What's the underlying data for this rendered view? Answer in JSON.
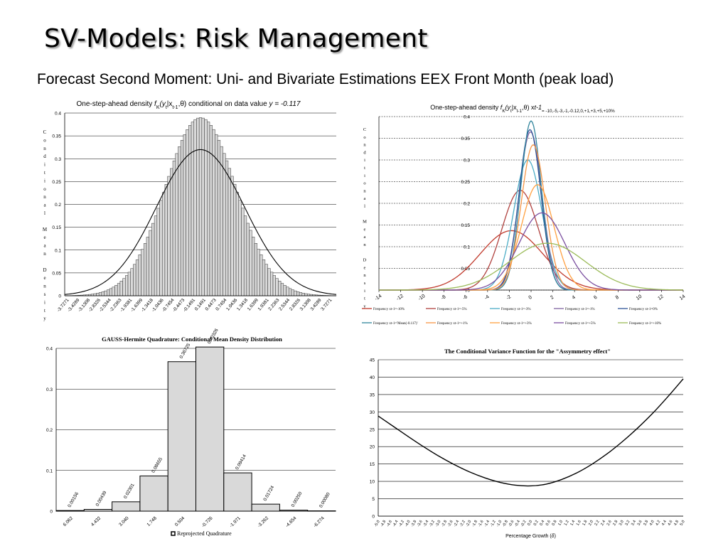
{
  "slide": {
    "title": "SV-Models: Risk Management",
    "subtitle": "Forecast Second Moment: Uni- and Bivariate Estimations EEX Front Month (peak load)"
  },
  "chart_data": [
    {
      "id": "density1",
      "type": "bar",
      "title_parts": [
        "One-step-ahead density ",
        "f",
        "K",
        "(y",
        "t",
        "|x",
        "t-1",
        ",θ) conditional on data value ",
        "y = -0.117"
      ],
      "ylabel": "Conditional Mean Density",
      "ylim": [
        0,
        0.4
      ],
      "yticks": [
        "0",
        "0.05",
        "0.1",
        "0.15",
        "0.2",
        "0.25",
        "0.3",
        "0.35",
        "0.4"
      ],
      "xticks": [
        "-3.7271",
        "-3.4289",
        "-3.1308",
        "-2.8326",
        "-2.5344",
        "-2.2363",
        "-1.9381",
        "-1.6399",
        "-1.3418",
        "-1.0436",
        "-0.7454",
        "-0.4473",
        "-0.1491",
        "0.1491",
        "0.4473",
        "0.7454",
        "1.0436",
        "1.3418",
        "1.6399",
        "1.9381",
        "2.2363",
        "2.5344",
        "2.8326",
        "3.1308",
        "3.4289",
        "3.7271"
      ],
      "x_range": [
        -3.85,
        3.85
      ],
      "bars": {
        "start": -3.8,
        "step": 0.0745,
        "count": 103,
        "peak": 0.39,
        "sigma": 1.0
      },
      "curve": {
        "peak": 0.32,
        "sigma": 1.25
      }
    },
    {
      "id": "density2",
      "type": "line",
      "title_parts": [
        "One-step-ahead density ",
        "f",
        "K",
        "(y",
        "t",
        "|x",
        "t-1",
        ",θ) x",
        "t-1",
        "= -10,-5,-3,-1,-0.12,0,+1,+3,+5,+10%"
      ],
      "ylabel": "Conditional Mean Density",
      "xlim": [
        -14,
        14
      ],
      "ylim": [
        0,
        0.4
      ],
      "xticks": [
        "-14",
        "-12",
        "-10",
        "-8",
        "-6",
        "-4",
        "-2",
        "0",
        "2",
        "4",
        "6",
        "8",
        "10",
        "12",
        "14"
      ],
      "yticks": [
        "0",
        "0.05",
        "0.1",
        "0.15",
        "0.2",
        "0.25",
        "0.3",
        "0.35",
        "0.4"
      ],
      "series": [
        {
          "name": "Frequency xt-1=-10%",
          "color": "#c0392b",
          "mu": -1.8,
          "sigma": 2.9,
          "peak": 0.137
        },
        {
          "name": "Frequency xt-1=-5%",
          "color": "#b0413e",
          "mu": -1.0,
          "sigma": 1.7,
          "peak": 0.23
        },
        {
          "name": "Frequency xt-1=-3%",
          "color": "#4bacc6",
          "mu": -0.3,
          "sigma": 1.3,
          "peak": 0.3
        },
        {
          "name": "Frequency xt-1=-1%",
          "color": "#8064a2",
          "mu": -0.05,
          "sigma": 1.05,
          "peak": 0.365
        },
        {
          "name": "Frequency xt-1=0%",
          "color": "#2f5597",
          "mu": -0.1,
          "sigma": 1.0,
          "peak": 0.37
        },
        {
          "name": "Frequency xt-1='Mean(-0.117)'",
          "color": "#31859c",
          "mu": 0.0,
          "sigma": 0.95,
          "peak": 0.39
        },
        {
          "name": "Frequency xt-1=+1%",
          "color": "#f79646",
          "mu": 0.2,
          "sigma": 1.1,
          "peak": 0.335
        },
        {
          "name": "Frequency xt-1=+3%",
          "color": "#ffa040",
          "mu": 0.6,
          "sigma": 1.5,
          "peak": 0.243
        },
        {
          "name": "Frequency xt-1=+5%",
          "color": "#7b4fa0",
          "mu": 1.0,
          "sigma": 2.1,
          "peak": 0.178
        },
        {
          "name": "Frequency xt-1=+10%",
          "color": "#9bbb59",
          "mu": 1.5,
          "sigma": 3.5,
          "peak": 0.108
        }
      ]
    },
    {
      "id": "quadrature",
      "type": "bar",
      "title": "GAUSS-Hermite Quadrature: Conditional Mean Density Distribution",
      "ylim": [
        0,
        0.4
      ],
      "yticks": [
        "0",
        "0.1",
        "0.2",
        "0.3",
        "0.4"
      ],
      "categories": [
        "6.062",
        "4.432",
        "3.040",
        "1.748",
        "0.504",
        "-0.726",
        "-1.971",
        "-3.262",
        "-4.654",
        "-6.274"
      ],
      "values": [
        0.00156,
        0.00439,
        0.02301,
        0.08655,
        0.36725,
        0.40326,
        0.09414,
        0.01724,
        0.0025,
        0.0008
      ],
      "data_labels": [
        "0.00156",
        "0.00439",
        "0.02301",
        "0.08655",
        "0.36725",
        "0.40326",
        "0.09414",
        "0.01724",
        "0.00250",
        "0.00080"
      ],
      "legend": "Reprojected Quadrature",
      "legend_position": "bottom"
    },
    {
      "id": "variance",
      "type": "line",
      "title": "The Conditional Variance Function for the \"Assymmetry effect\"",
      "xlabel": "Percentage Growth (",
      "xlabel_symbol": "δ",
      "xlabel_tail": ")",
      "xlim": [
        -5,
        5
      ],
      "ylim": [
        0,
        45
      ],
      "yticks": [
        "0",
        "5",
        "10",
        "15",
        "20",
        "25",
        "30",
        "35",
        "40",
        "45"
      ],
      "xticks": [
        "-5.0",
        "-4.8",
        "-4.6",
        "-4.4",
        "-4.2",
        "-4.0",
        "-3.8",
        "-3.6",
        "-3.4",
        "-3.2",
        "-3.0",
        "-2.8",
        "-2.6",
        "-2.4",
        "-2.2",
        "-2.0",
        "-1.8",
        "-1.6",
        "-1.4",
        "-1.2",
        "-1.0",
        "-0.8",
        "-0.6",
        "-0.4",
        "-0.2",
        "0.0",
        "0.2",
        "0.4",
        "0.6",
        "0.8",
        "1.0",
        "1.2",
        "1.4",
        "1.6",
        "1.8",
        "2.0",
        "2.2",
        "2.4",
        "2.6",
        "2.8",
        "3.0",
        "3.2",
        "3.4",
        "3.6",
        "3.8",
        "4.0",
        "4.2",
        "4.4",
        "4.6",
        "4.8",
        "5.0"
      ],
      "points": [
        [
          -5.0,
          28.8
        ],
        [
          -4.5,
          25.8
        ],
        [
          -4.0,
          22.8
        ],
        [
          -3.5,
          19.9
        ],
        [
          -3.0,
          17.2
        ],
        [
          -2.5,
          14.8
        ],
        [
          -2.0,
          12.7
        ],
        [
          -1.5,
          11.0
        ],
        [
          -1.0,
          9.7
        ],
        [
          -0.5,
          8.9
        ],
        [
          0.0,
          8.7
        ],
        [
          0.5,
          9.2
        ],
        [
          1.0,
          10.5
        ],
        [
          1.5,
          12.4
        ],
        [
          2.0,
          14.9
        ],
        [
          2.5,
          17.9
        ],
        [
          3.0,
          21.4
        ],
        [
          3.5,
          25.3
        ],
        [
          4.0,
          29.6
        ],
        [
          4.5,
          34.4
        ],
        [
          5.0,
          39.5
        ]
      ]
    }
  ]
}
